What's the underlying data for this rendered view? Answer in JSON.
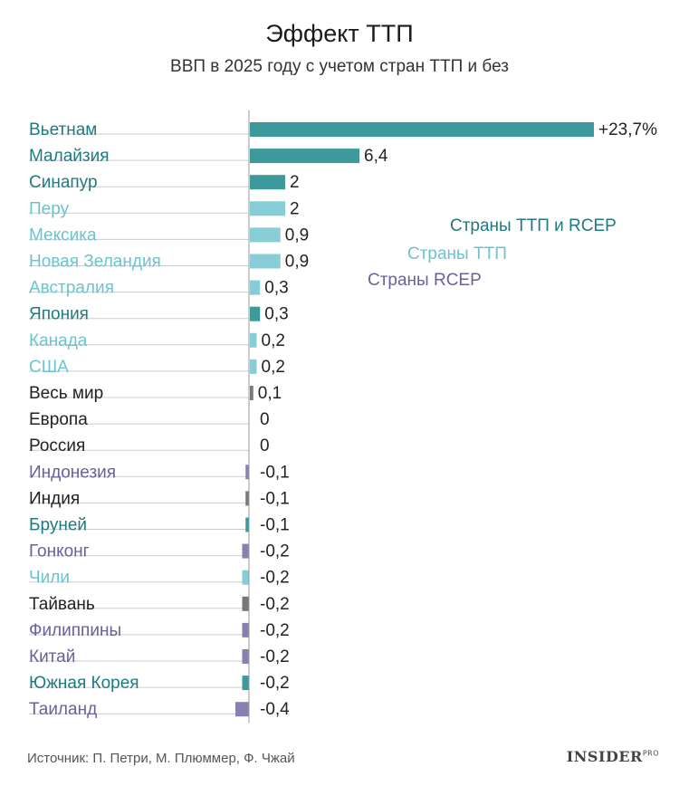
{
  "title": "Эффект ТТП",
  "subtitle": "ВВП в 2025 году с учетом стран ТТП и без",
  "source": "Источник: П. Петри, М. Плюммер, Ф. Чжай",
  "logo": "INSIDER",
  "logo_sup": "PRO",
  "colors": {
    "tpp_rcep": "#3d9a9c",
    "tpp": "#86cdd6",
    "rcep": "#8b7fb1",
    "other": "#777777",
    "label_tpp_rcep": "#1f7a80",
    "label_tpp": "#6cc3cf",
    "label_rcep": "#6c5f9a",
    "label_other": "#222222"
  },
  "legend": [
    {
      "label": "Страны ТТП и RCEP",
      "group": "tpp_rcep"
    },
    {
      "label": "Страны ТТП",
      "group": "tpp"
    },
    {
      "label": "Страны RCEP",
      "group": "rcep"
    }
  ],
  "chart_data": {
    "type": "bar",
    "orientation": "horizontal",
    "grid": false,
    "categories": [
      "Вьетнам",
      "Малайзия",
      "Синапур",
      "Перу",
      "Мексика",
      "Новая Зеландия",
      "Австралия",
      "Япония",
      "Канада",
      "США",
      "Весь мир",
      "Европа",
      "Россия",
      "Индонезия",
      "Индия",
      "Бруней",
      "Гонконг",
      "Чили",
      "Тайвань",
      "Филиппины",
      "Китай",
      "Южная Корея",
      "Таиланд"
    ],
    "values": [
      23.7,
      6.4,
      2,
      2,
      0.9,
      0.9,
      0.3,
      0.3,
      0.2,
      0.2,
      0.1,
      0,
      0,
      -0.1,
      -0.1,
      -0.1,
      -0.2,
      -0.2,
      -0.2,
      -0.2,
      -0.2,
      -0.2,
      -0.4
    ],
    "value_labels": [
      "+23,7%",
      "6,4",
      "2",
      "2",
      "0,9",
      "0,9",
      "0,3",
      "0,3",
      "0,2",
      "0,2",
      "0,1",
      "0",
      "0",
      "-0,1",
      "-0,1",
      "-0,1",
      "-0,2",
      "-0,2",
      "-0,2",
      "-0,2",
      "-0,2",
      "-0,2",
      "-0,4"
    ],
    "groups": [
      "tpp_rcep",
      "tpp_rcep",
      "tpp_rcep",
      "tpp",
      "tpp",
      "tpp",
      "tpp",
      "tpp_rcep",
      "tpp",
      "tpp",
      "other",
      "other",
      "other",
      "rcep",
      "other",
      "tpp_rcep",
      "rcep",
      "tpp",
      "other",
      "rcep",
      "rcep",
      "tpp_rcep",
      "rcep"
    ]
  }
}
